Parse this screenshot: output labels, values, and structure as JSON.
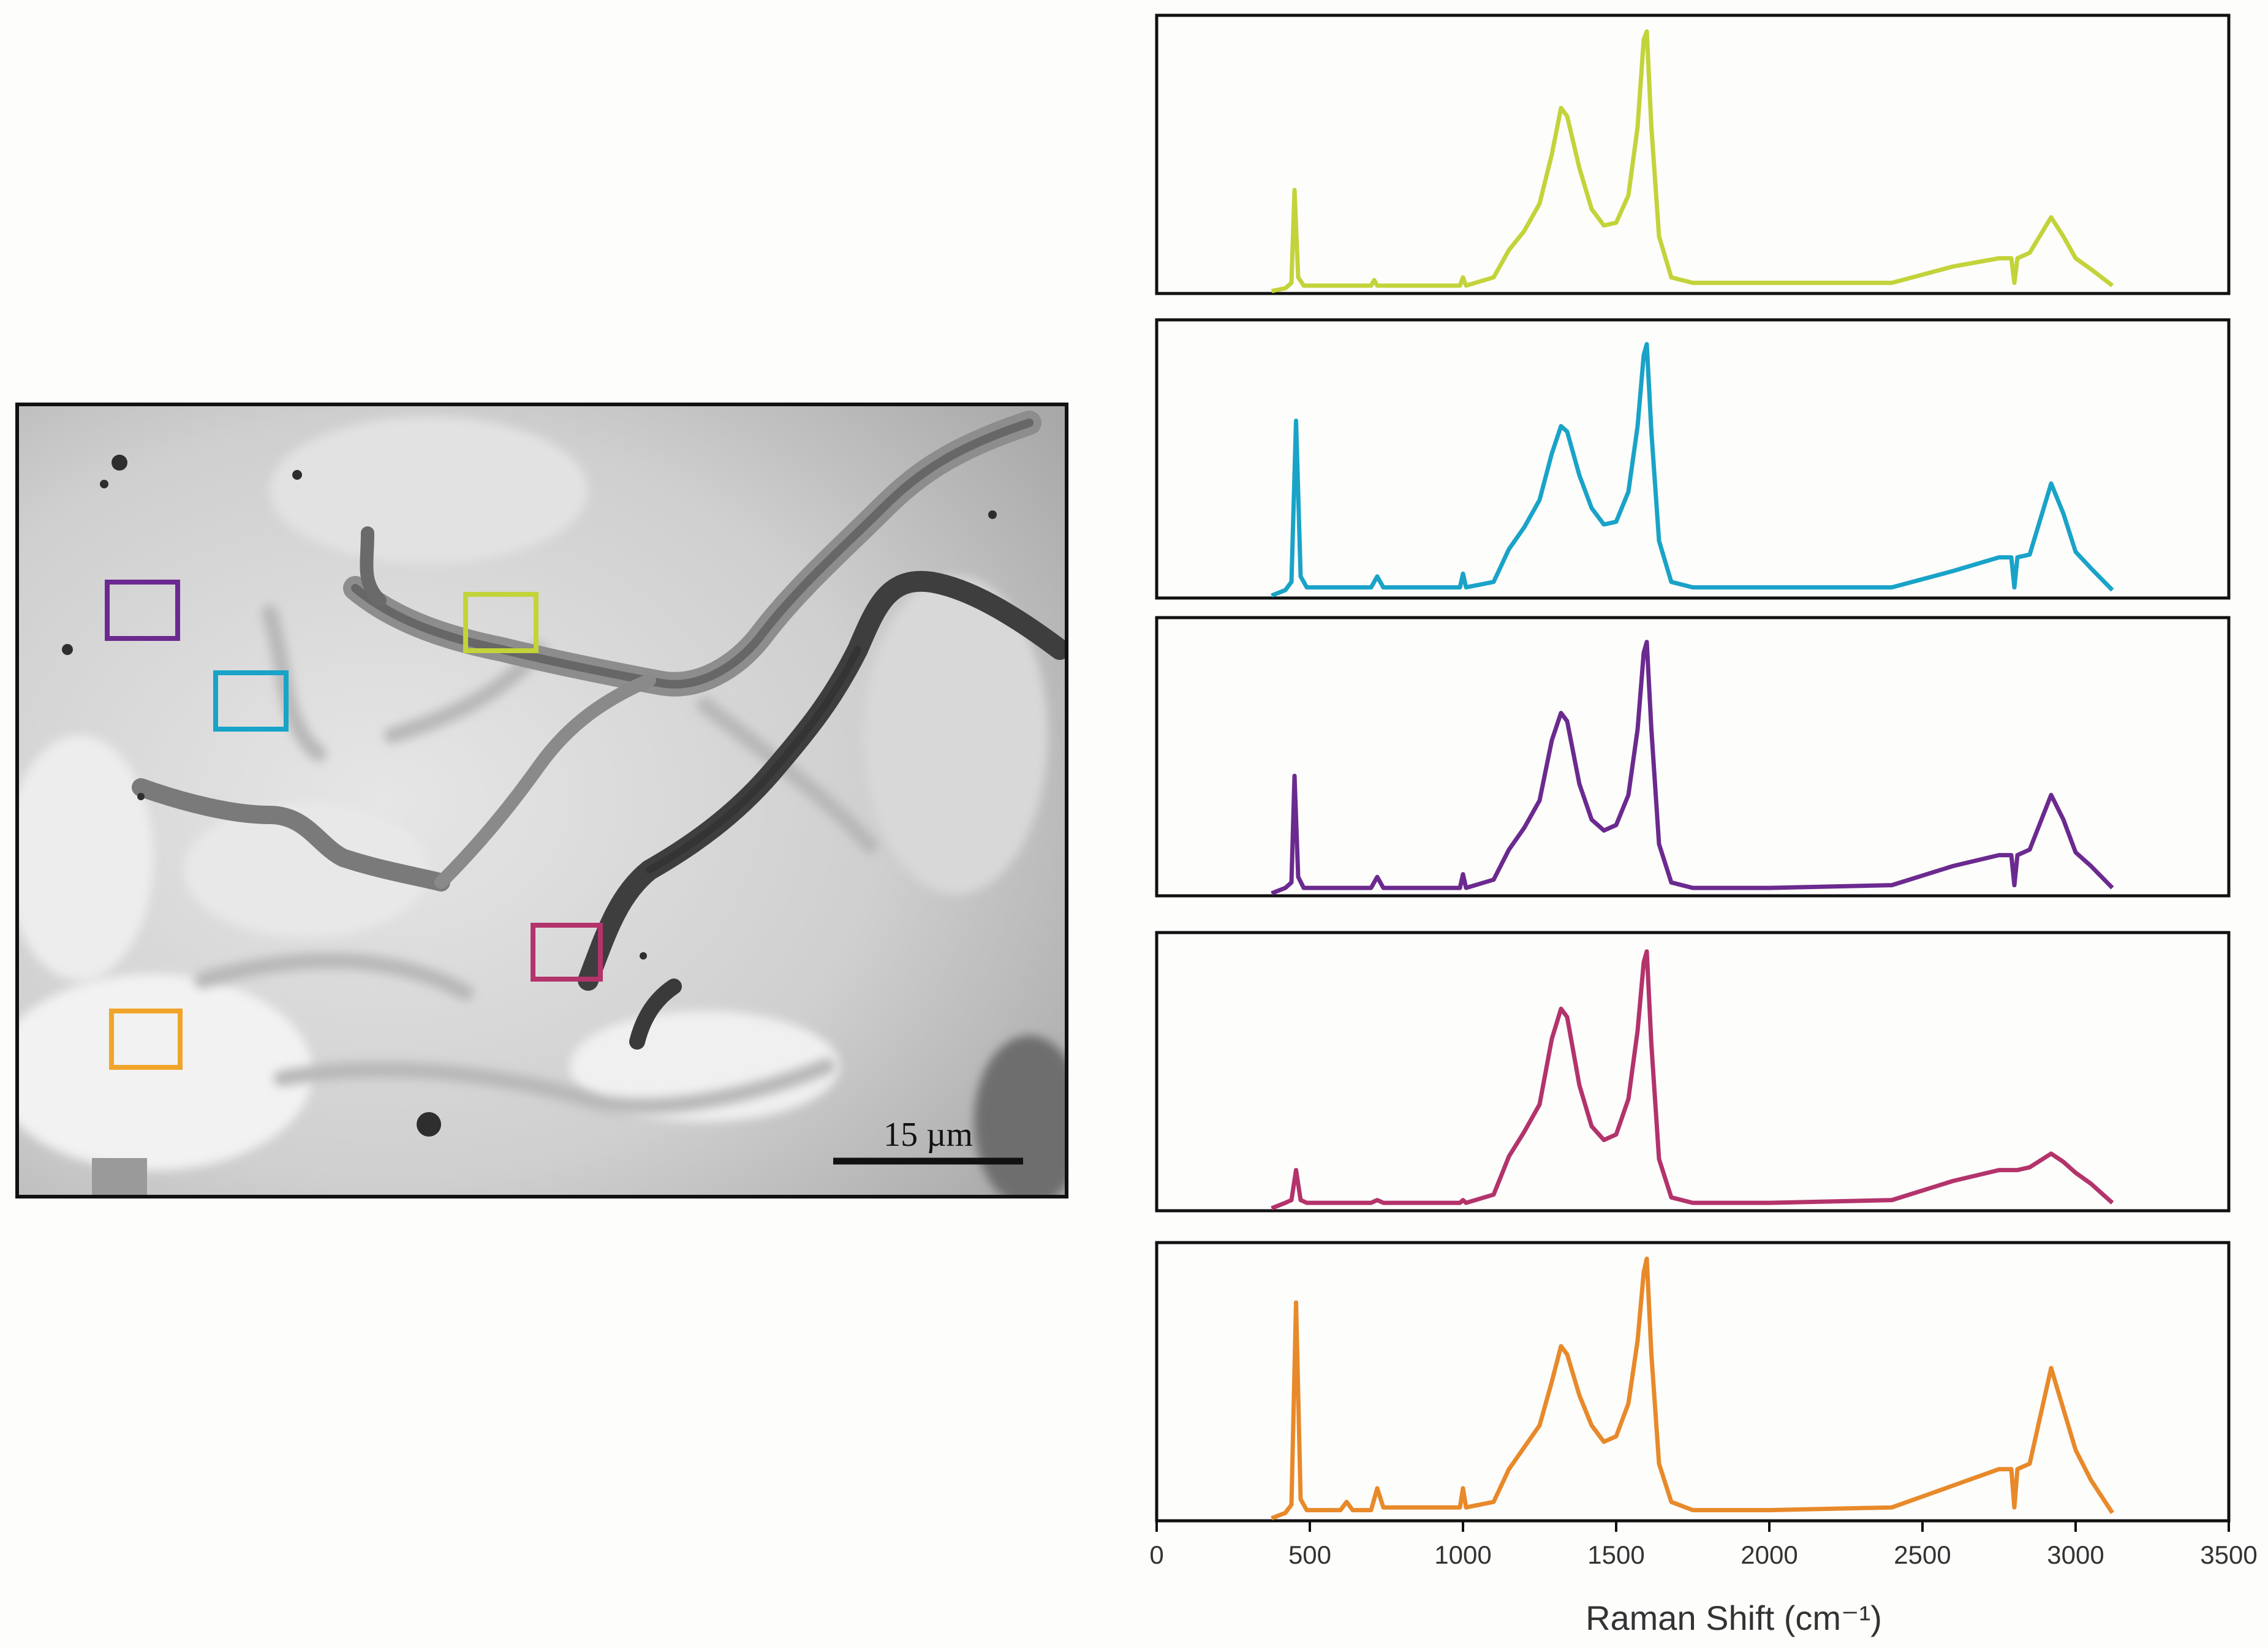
{
  "micrograph": {
    "scale_bar_label": "15 µm",
    "regions": [
      {
        "id": "yellow-green",
        "color": "#c3d33a"
      },
      {
        "id": "cyan",
        "color": "#1aa3c8"
      },
      {
        "id": "purple",
        "color": "#6b2a8f"
      },
      {
        "id": "magenta",
        "color": "#b3336b"
      },
      {
        "id": "orange",
        "color": "#f0a52a"
      }
    ]
  },
  "chart_data": {
    "type": "line",
    "layout": "stacked-panels",
    "xlabel": "Raman Shift (cm⁻¹)",
    "xlim": [
      0,
      3500
    ],
    "xticks": [
      0,
      500,
      1000,
      1500,
      2000,
      2500,
      3000,
      3500
    ],
    "y_axis_labels": "none",
    "grid": false,
    "legend": "none",
    "series": [
      {
        "color": "#c3d33a",
        "ylim": [
          0,
          1.0
        ],
        "x": [
          375,
          420,
          440,
          450,
          462,
          480,
          600,
          700,
          710,
          720,
          800,
          990,
          1000,
          1010,
          1100,
          1150,
          1200,
          1250,
          1290,
          1320,
          1340,
          1380,
          1420,
          1460,
          1500,
          1540,
          1570,
          1590,
          1600,
          1615,
          1640,
          1680,
          1750,
          2000,
          2400,
          2600,
          2750,
          2790,
          2800,
          2810,
          2850,
          2920,
          2960,
          3000,
          3050,
          3120
        ],
        "y": [
          0,
          0.01,
          0.03,
          0.37,
          0.05,
          0.02,
          0.02,
          0.02,
          0.04,
          0.02,
          0.02,
          0.02,
          0.05,
          0.02,
          0.05,
          0.15,
          0.22,
          0.32,
          0.5,
          0.67,
          0.64,
          0.45,
          0.3,
          0.24,
          0.25,
          0.35,
          0.6,
          0.92,
          0.95,
          0.6,
          0.2,
          0.05,
          0.03,
          0.03,
          0.03,
          0.09,
          0.12,
          0.12,
          0.03,
          0.12,
          0.14,
          0.27,
          0.2,
          0.12,
          0.08,
          0.02
        ]
      },
      {
        "color": "#1aa3c8",
        "ylim": [
          0,
          1.0
        ],
        "x": [
          375,
          420,
          440,
          455,
          470,
          490,
          600,
          700,
          720,
          740,
          800,
          990,
          1000,
          1010,
          1100,
          1150,
          1200,
          1250,
          1290,
          1320,
          1340,
          1380,
          1420,
          1460,
          1500,
          1540,
          1570,
          1590,
          1600,
          1615,
          1640,
          1680,
          1750,
          2000,
          2400,
          2600,
          2750,
          2790,
          2800,
          2810,
          2850,
          2920,
          2960,
          3000,
          3050,
          3120
        ],
        "y": [
          0,
          0.02,
          0.05,
          0.64,
          0.07,
          0.03,
          0.03,
          0.03,
          0.07,
          0.03,
          0.03,
          0.03,
          0.08,
          0.03,
          0.05,
          0.17,
          0.25,
          0.35,
          0.52,
          0.62,
          0.6,
          0.44,
          0.32,
          0.26,
          0.27,
          0.38,
          0.62,
          0.88,
          0.92,
          0.6,
          0.2,
          0.05,
          0.03,
          0.03,
          0.03,
          0.09,
          0.14,
          0.14,
          0.03,
          0.14,
          0.15,
          0.41,
          0.3,
          0.16,
          0.1,
          0.02
        ]
      },
      {
        "color": "#6b2a8f",
        "ylim": [
          0,
          1.0
        ],
        "x": [
          375,
          420,
          440,
          450,
          462,
          480,
          600,
          700,
          720,
          740,
          800,
          990,
          1000,
          1010,
          1100,
          1150,
          1200,
          1250,
          1290,
          1320,
          1340,
          1380,
          1420,
          1460,
          1500,
          1540,
          1570,
          1590,
          1600,
          1615,
          1640,
          1680,
          1750,
          2000,
          2400,
          2600,
          2750,
          2790,
          2800,
          2810,
          2850,
          2920,
          2960,
          3000,
          3050,
          3120
        ],
        "y": [
          0,
          0.02,
          0.04,
          0.43,
          0.06,
          0.02,
          0.02,
          0.02,
          0.06,
          0.02,
          0.02,
          0.02,
          0.07,
          0.02,
          0.05,
          0.16,
          0.24,
          0.34,
          0.56,
          0.66,
          0.63,
          0.4,
          0.27,
          0.23,
          0.25,
          0.36,
          0.6,
          0.88,
          0.92,
          0.6,
          0.18,
          0.04,
          0.02,
          0.02,
          0.03,
          0.1,
          0.14,
          0.14,
          0.03,
          0.14,
          0.16,
          0.36,
          0.27,
          0.15,
          0.1,
          0.02
        ]
      },
      {
        "color": "#b3336b",
        "ylim": [
          0,
          1.0
        ],
        "x": [
          375,
          420,
          440,
          455,
          470,
          490,
          600,
          700,
          720,
          740,
          800,
          990,
          1000,
          1010,
          1100,
          1150,
          1200,
          1250,
          1290,
          1320,
          1340,
          1380,
          1420,
          1460,
          1500,
          1540,
          1570,
          1590,
          1600,
          1615,
          1640,
          1680,
          1750,
          2000,
          2400,
          2600,
          2750,
          2790,
          2800,
          2810,
          2850,
          2920,
          2960,
          3000,
          3050,
          3120
        ],
        "y": [
          0,
          0.02,
          0.03,
          0.14,
          0.03,
          0.02,
          0.02,
          0.02,
          0.03,
          0.02,
          0.02,
          0.02,
          0.03,
          0.02,
          0.05,
          0.19,
          0.28,
          0.38,
          0.62,
          0.73,
          0.7,
          0.45,
          0.3,
          0.25,
          0.27,
          0.4,
          0.65,
          0.9,
          0.94,
          0.6,
          0.18,
          0.04,
          0.02,
          0.02,
          0.03,
          0.1,
          0.14,
          0.14,
          0.14,
          0.14,
          0.15,
          0.2,
          0.17,
          0.13,
          0.09,
          0.02
        ]
      },
      {
        "color": "#e8892a",
        "ylim": [
          0,
          1.0
        ],
        "x": [
          375,
          420,
          440,
          455,
          470,
          490,
          600,
          620,
          640,
          700,
          720,
          740,
          800,
          990,
          1000,
          1010,
          1100,
          1150,
          1200,
          1250,
          1290,
          1320,
          1340,
          1380,
          1420,
          1460,
          1500,
          1540,
          1570,
          1590,
          1600,
          1615,
          1640,
          1680,
          1750,
          2000,
          2400,
          2600,
          2750,
          2790,
          2800,
          2810,
          2850,
          2920,
          2960,
          3000,
          3050,
          3120
        ],
        "y": [
          0,
          0.02,
          0.05,
          0.79,
          0.07,
          0.03,
          0.03,
          0.06,
          0.03,
          0.03,
          0.11,
          0.04,
          0.04,
          0.04,
          0.11,
          0.04,
          0.06,
          0.18,
          0.26,
          0.34,
          0.5,
          0.63,
          0.6,
          0.45,
          0.34,
          0.28,
          0.3,
          0.42,
          0.65,
          0.9,
          0.95,
          0.6,
          0.2,
          0.06,
          0.03,
          0.03,
          0.04,
          0.12,
          0.18,
          0.18,
          0.04,
          0.18,
          0.2,
          0.55,
          0.4,
          0.25,
          0.14,
          0.02
        ]
      }
    ]
  }
}
